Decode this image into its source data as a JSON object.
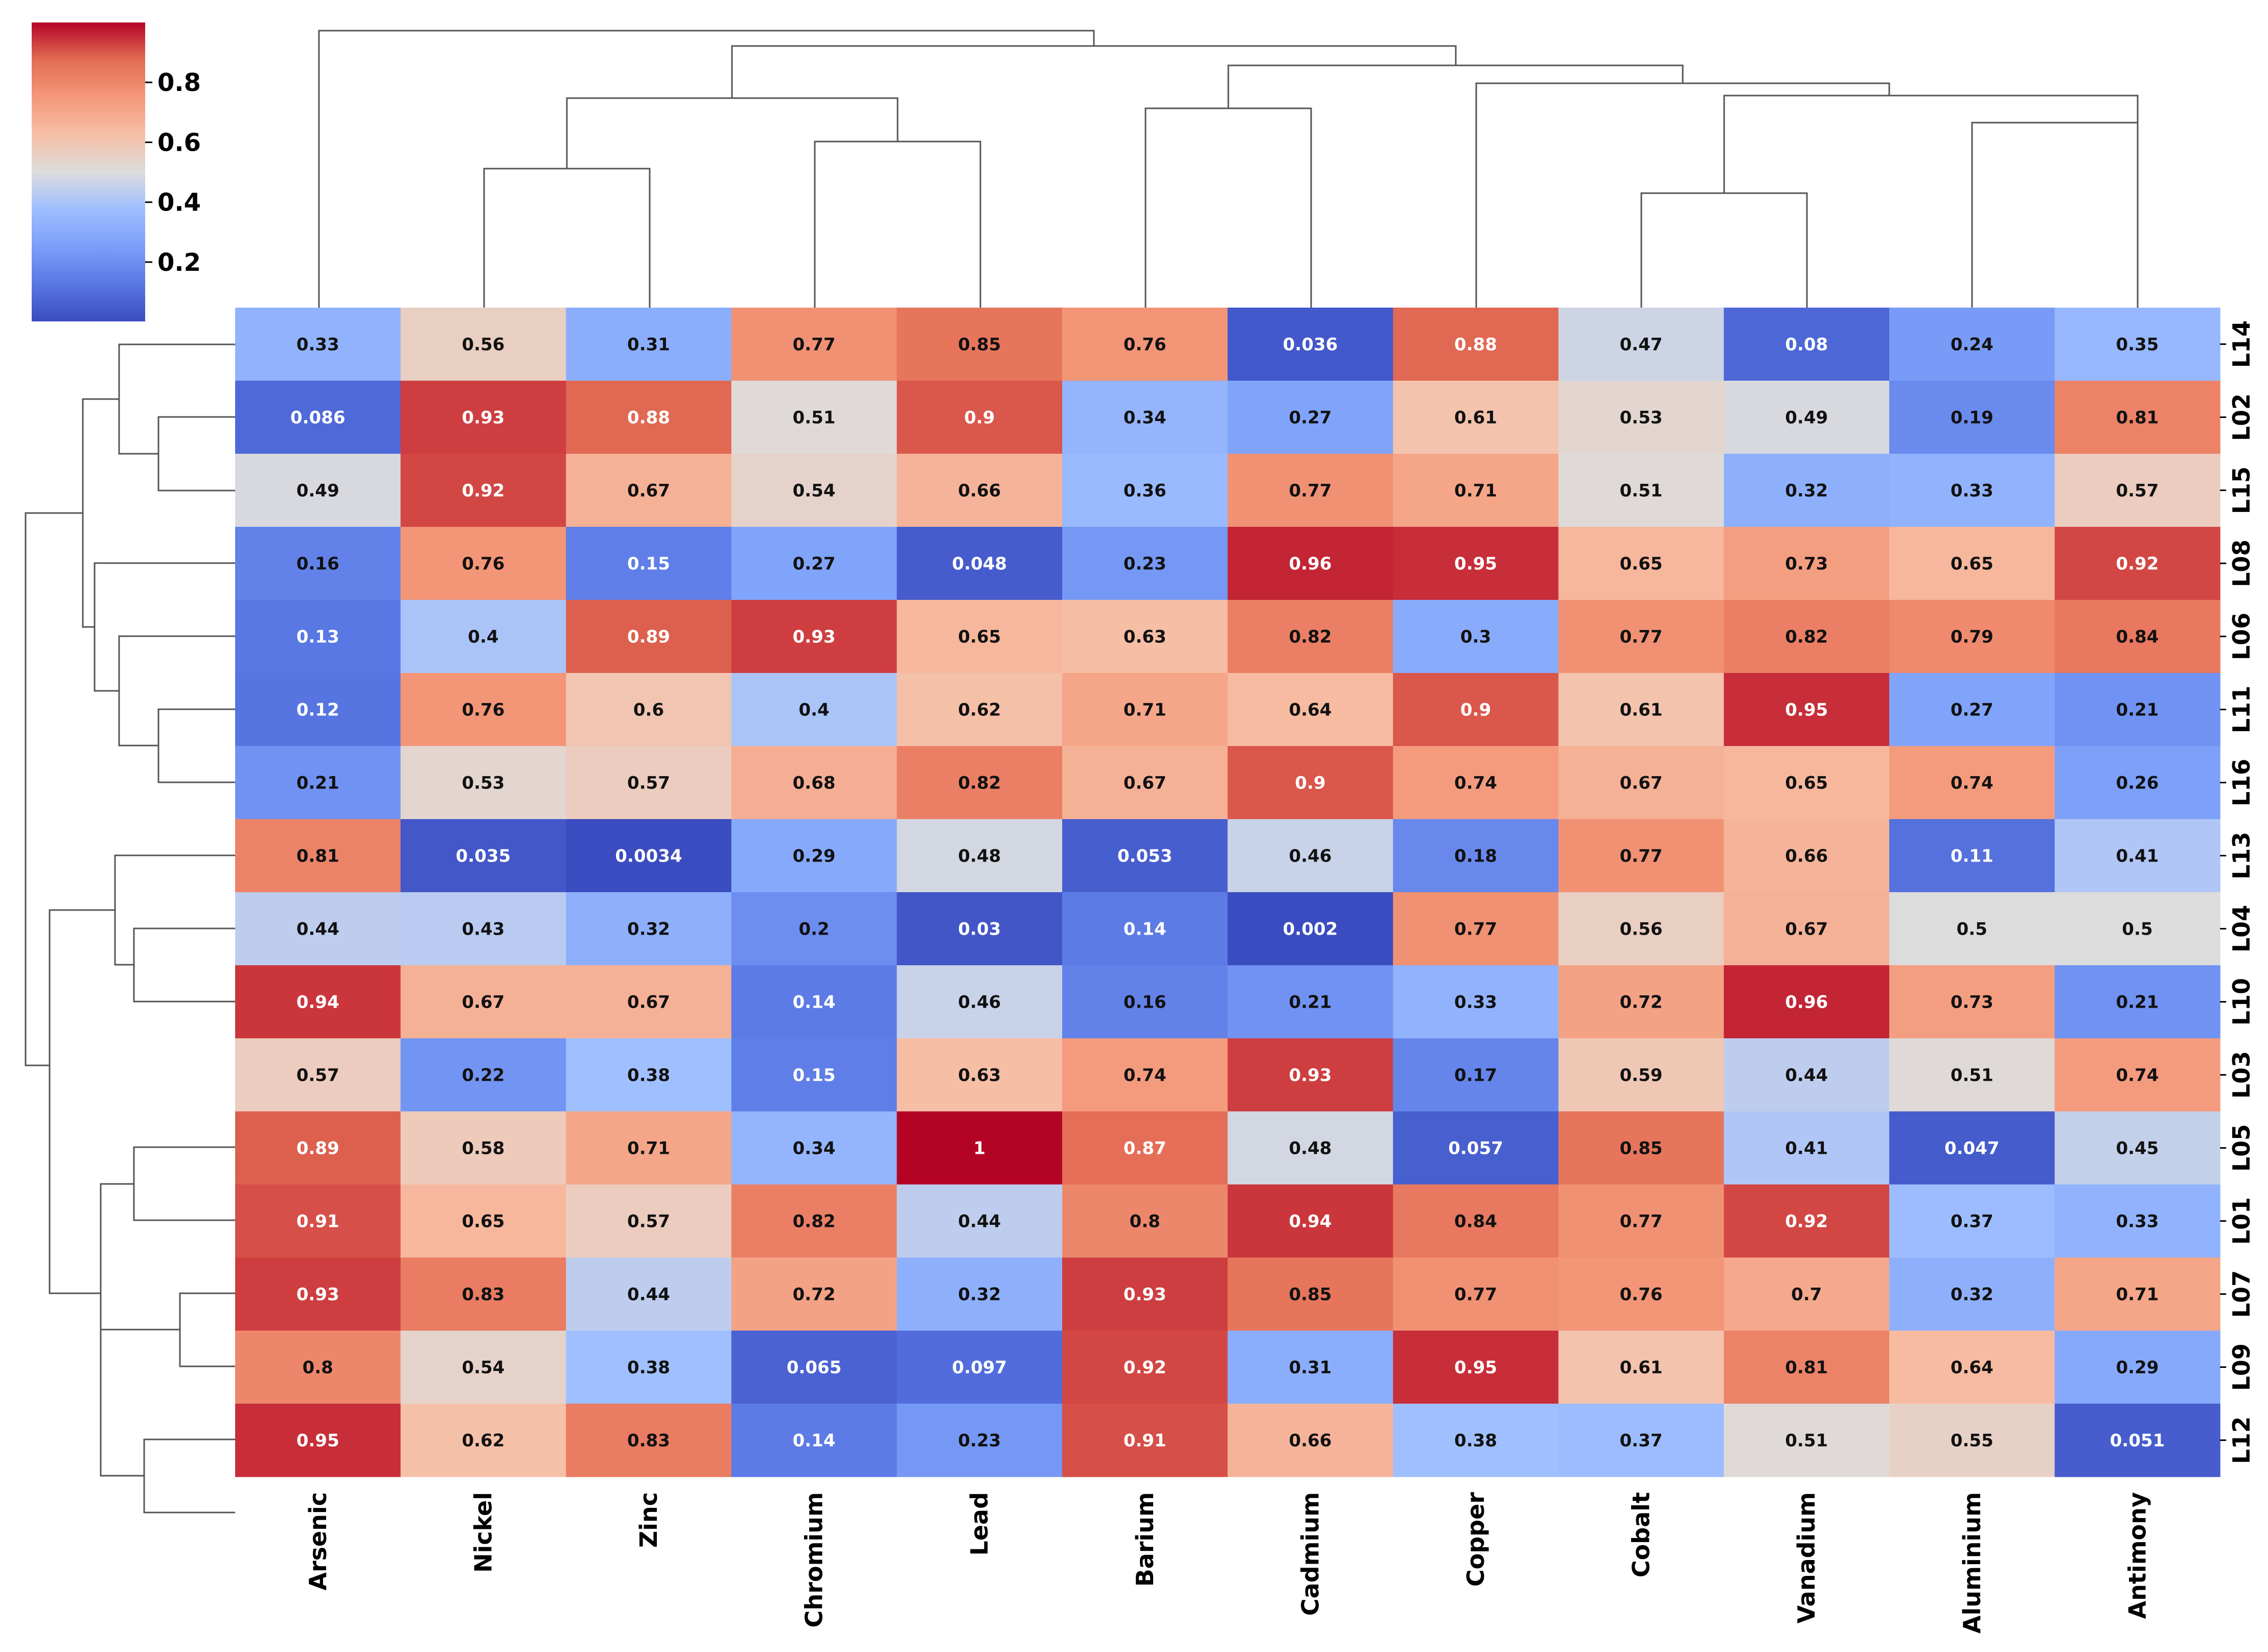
{
  "chart_data": {
    "type": "heatmap",
    "title": "",
    "columns": [
      "Arsenic",
      "Nickel",
      "Zinc",
      "Chromium",
      "Lead",
      "Barium",
      "Cadmium",
      "Copper",
      "Cobalt",
      "Vanadium",
      "Aluminium",
      "Antimony"
    ],
    "rows": [
      "L14",
      "L02",
      "L15",
      "L08",
      "L06",
      "L11",
      "L16",
      "L13",
      "L04",
      "L10",
      "L03",
      "L05",
      "L01",
      "L07",
      "L09",
      "L12"
    ],
    "values": [
      [
        0.33,
        0.56,
        0.31,
        0.77,
        0.85,
        0.76,
        0.036,
        0.88,
        0.47,
        0.08,
        0.24,
        0.35
      ],
      [
        0.086,
        0.93,
        0.88,
        0.51,
        0.9,
        0.34,
        0.27,
        0.61,
        0.53,
        0.49,
        0.19,
        0.81
      ],
      [
        0.49,
        0.92,
        0.67,
        0.54,
        0.66,
        0.36,
        0.77,
        0.71,
        0.51,
        0.32,
        0.33,
        0.57
      ],
      [
        0.16,
        0.76,
        0.15,
        0.27,
        0.048,
        0.23,
        0.96,
        0.95,
        0.65,
        0.73,
        0.65,
        0.92
      ],
      [
        0.13,
        0.4,
        0.89,
        0.93,
        0.65,
        0.63,
        0.82,
        0.3,
        0.77,
        0.82,
        0.79,
        0.84
      ],
      [
        0.12,
        0.76,
        0.6,
        0.4,
        0.62,
        0.71,
        0.64,
        0.9,
        0.61,
        0.95,
        0.27,
        0.21
      ],
      [
        0.21,
        0.53,
        0.57,
        0.68,
        0.82,
        0.67,
        0.9,
        0.74,
        0.67,
        0.65,
        0.74,
        0.26
      ],
      [
        0.81,
        0.035,
        0.0034,
        0.29,
        0.48,
        0.053,
        0.46,
        0.18,
        0.77,
        0.66,
        0.11,
        0.41
      ],
      [
        0.44,
        0.43,
        0.32,
        0.2,
        0.03,
        0.14,
        0.002,
        0.77,
        0.56,
        0.67,
        0.5,
        0.5
      ],
      [
        0.94,
        0.67,
        0.67,
        0.14,
        0.46,
        0.16,
        0.21,
        0.33,
        0.72,
        0.96,
        0.73,
        0.21
      ],
      [
        0.57,
        0.22,
        0.38,
        0.15,
        0.63,
        0.74,
        0.93,
        0.17,
        0.59,
        0.44,
        0.51,
        0.74
      ],
      [
        0.89,
        0.58,
        0.71,
        0.34,
        1,
        0.87,
        0.48,
        0.057,
        0.85,
        0.41,
        0.047,
        0.45
      ],
      [
        0.91,
        0.65,
        0.57,
        0.82,
        0.44,
        0.8,
        0.94,
        0.84,
        0.77,
        0.92,
        0.37,
        0.33
      ],
      [
        0.93,
        0.83,
        0.44,
        0.72,
        0.32,
        0.93,
        0.85,
        0.77,
        0.76,
        0.7,
        0.32,
        0.71
      ],
      [
        0.8,
        0.54,
        0.38,
        0.065,
        0.097,
        0.92,
        0.31,
        0.95,
        0.61,
        0.81,
        0.64,
        0.29
      ],
      [
        0.95,
        0.62,
        0.83,
        0.14,
        0.23,
        0.91,
        0.66,
        0.38,
        0.37,
        0.51,
        0.55,
        0.051
      ]
    ],
    "colormap": "coolwarm",
    "vmin": 0.002,
    "vmax": 1,
    "colorbar": {
      "ticks": [
        0.2,
        0.4,
        0.6,
        0.8
      ],
      "tick_labels": [
        "0.2",
        "0.4",
        "0.6",
        "0.8"
      ],
      "placement": "top-left"
    },
    "row_dendrogram": "left",
    "column_dendrogram": "top"
  }
}
